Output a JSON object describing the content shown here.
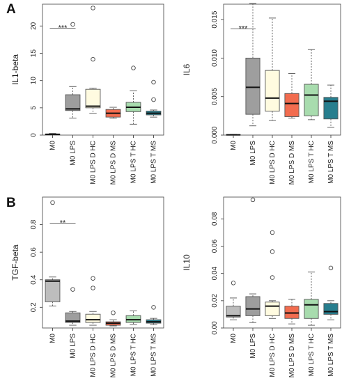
{
  "panels": [
    {
      "letter": "A"
    },
    {
      "letter": "B"
    }
  ],
  "chart_data": [
    {
      "type": "box",
      "ylabel": "IL1-beta",
      "ylim": [
        0,
        24
      ],
      "yticks": [
        0,
        5,
        10,
        15,
        20
      ],
      "ytick_labels": [
        "0",
        "5",
        "10",
        "15",
        "20"
      ],
      "categories": [
        "M0",
        "M0 LPS",
        "M0 LPS D HC",
        "M0 LPS D MS",
        "M0 LPS T HC",
        "M0 LPS T MS"
      ],
      "colors": [
        "#bdbdbd",
        "#9e9e9e",
        "#fffbe0",
        "#f26c4f",
        "#a8dcae",
        "#277e8e"
      ],
      "boxes": [
        {
          "whisker_low": 0.1,
          "q1": 0.1,
          "median": 0.15,
          "q3": 0.2,
          "whisker_high": 0.3,
          "outliers": []
        },
        {
          "whisker_low": 3.1,
          "q1": 4.5,
          "median": 4.8,
          "q3": 7.4,
          "whisker_high": 8.9,
          "outliers": [
            20.3
          ]
        },
        {
          "whisker_low": 4.0,
          "q1": 5.0,
          "median": 5.3,
          "q3": 8.4,
          "whisker_high": 8.6,
          "outliers": [
            13.9,
            23.3
          ]
        },
        {
          "whisker_low": 3.1,
          "q1": 3.3,
          "median": 4.0,
          "q3": 4.7,
          "whisker_high": 5.1,
          "outliers": []
        },
        {
          "whisker_low": 2.0,
          "q1": 4.3,
          "median": 5.1,
          "q3": 6.0,
          "whisker_high": 8.1,
          "outliers": [
            12.3
          ]
        },
        {
          "whisker_low": 3.3,
          "q1": 3.7,
          "median": 4.0,
          "q3": 4.4,
          "whisker_high": 4.6,
          "outliers": [
            6.5,
            9.7
          ]
        }
      ],
      "annotations": [
        {
          "text": "***",
          "from": 0,
          "to": 1,
          "y": 19.6
        }
      ]
    },
    {
      "type": "box",
      "ylabel": "IL6",
      "ylim": [
        0,
        0.017
      ],
      "yticks": [
        0,
        0.005,
        0.01,
        0.015
      ],
      "ytick_labels": [
        "0.000",
        "0.005",
        "0.010",
        "0.015"
      ],
      "categories": [
        "M0",
        "M0 LPS",
        "M0 LPS D HC",
        "M0 LPS D MS",
        "M0 LPS T HC",
        "M0 LPS T MS"
      ],
      "colors": [
        "#bdbdbd",
        "#9e9e9e",
        "#fffbe0",
        "#f26c4f",
        "#a8dcae",
        "#277e8e"
      ],
      "boxes": [
        {
          "whisker_low": 0.0,
          "q1": 0.0,
          "median": 3e-05,
          "q3": 6e-05,
          "whisker_high": 0.0001,
          "outliers": []
        },
        {
          "whisker_low": 0.0012,
          "q1": 0.0027,
          "median": 0.0062,
          "q3": 0.01,
          "whisker_high": 0.0171,
          "outliers": []
        },
        {
          "whisker_low": 0.0019,
          "q1": 0.0031,
          "median": 0.0048,
          "q3": 0.0084,
          "whisker_high": 0.0152,
          "outliers": []
        },
        {
          "whisker_low": 0.0022,
          "q1": 0.0024,
          "median": 0.0041,
          "q3": 0.0054,
          "whisker_high": 0.008,
          "outliers": []
        },
        {
          "whisker_low": 0.002,
          "q1": 0.0025,
          "median": 0.0052,
          "q3": 0.0066,
          "whisker_high": 0.0111,
          "outliers": []
        },
        {
          "whisker_low": 0.001,
          "q1": 0.0021,
          "median": 0.0044,
          "q3": 0.0049,
          "whisker_high": 0.0065,
          "outliers": []
        }
      ],
      "annotations": [
        {
          "text": "***",
          "from": 0,
          "to": 1,
          "y": 0.0138
        }
      ]
    },
    {
      "type": "box",
      "ylabel": "TGF-beta",
      "ylim": [
        0.05,
        1.0
      ],
      "yticks": [
        0.2,
        0.4,
        0.6,
        0.8
      ],
      "ytick_labels": [
        "0.2",
        "0.4",
        "0.6",
        "0.8"
      ],
      "categories": [
        "M0",
        "M0 LPS",
        "M0 LPS D HC",
        "M0 LPS D MS",
        "M0 LPS T HC",
        "M0 LPS T MS"
      ],
      "colors": [
        "#bdbdbd",
        "#9e9e9e",
        "#fffbe0",
        "#f26c4f",
        "#a8dcae",
        "#277e8e"
      ],
      "boxes": [
        {
          "whisker_low": 0.21,
          "q1": 0.24,
          "median": 0.39,
          "q3": 0.4,
          "whisker_high": 0.42,
          "outliers": [
            0.96
          ]
        },
        {
          "whisker_low": 0.07,
          "q1": 0.09,
          "median": 0.1,
          "q3": 0.16,
          "whisker_high": 0.17,
          "outliers": [
            0.33
          ]
        },
        {
          "whisker_low": 0.07,
          "q1": 0.09,
          "median": 0.11,
          "q3": 0.15,
          "whisker_high": 0.17,
          "outliers": [
            0.34,
            0.41
          ]
        },
        {
          "whisker_low": 0.065,
          "q1": 0.07,
          "median": 0.085,
          "q3": 0.095,
          "whisker_high": 0.11,
          "outliers": [
            0.16
          ]
        },
        {
          "whisker_low": 0.075,
          "q1": 0.09,
          "median": 0.11,
          "q3": 0.14,
          "whisker_high": 0.175,
          "outliers": []
        },
        {
          "whisker_low": 0.075,
          "q1": 0.085,
          "median": 0.095,
          "q3": 0.11,
          "whisker_high": 0.12,
          "outliers": [
            0.2
          ]
        }
      ],
      "annotations": [
        {
          "text": "**",
          "from": 0,
          "to": 1,
          "y": 0.81
        }
      ]
    },
    {
      "type": "box",
      "ylabel": "IL10",
      "ylim": [
        0.0,
        0.096
      ],
      "yticks": [
        0.0,
        0.02,
        0.04,
        0.06,
        0.08
      ],
      "ytick_labels": [
        "0.00",
        "0.02",
        "0.04",
        "0.06",
        "0.08"
      ],
      "categories": [
        "M0",
        "M0 LPS",
        "M0 LPS D HC",
        "M0 LPS D MS",
        "M0 LPS T HC",
        "M0 LPS T MS"
      ],
      "colors": [
        "#bdbdbd",
        "#9e9e9e",
        "#fffbe0",
        "#f26c4f",
        "#a8dcae",
        "#277e8e"
      ],
      "boxes": [
        {
          "whisker_low": 0.006,
          "q1": 0.008,
          "median": 0.009,
          "q3": 0.016,
          "whisker_high": 0.022,
          "outliers": [
            0.033
          ]
        },
        {
          "whisker_low": 0.004,
          "q1": 0.009,
          "median": 0.014,
          "q3": 0.023,
          "whisker_high": 0.025,
          "outliers": [
            0.094
          ]
        },
        {
          "whisker_low": 0.007,
          "q1": 0.009,
          "median": 0.016,
          "q3": 0.019,
          "whisker_high": 0.02,
          "outliers": [
            0.037,
            0.056,
            0.07
          ]
        },
        {
          "whisker_low": 0.003,
          "q1": 0.007,
          "median": 0.011,
          "q3": 0.016,
          "whisker_high": 0.021,
          "outliers": []
        },
        {
          "whisker_low": 0.002,
          "q1": 0.007,
          "median": 0.017,
          "q3": 0.021,
          "whisker_high": 0.041,
          "outliers": []
        },
        {
          "whisker_low": 0.006,
          "q1": 0.01,
          "median": 0.012,
          "q3": 0.018,
          "whisker_high": 0.02,
          "outliers": [
            0.044
          ]
        }
      ],
      "annotations": []
    }
  ]
}
